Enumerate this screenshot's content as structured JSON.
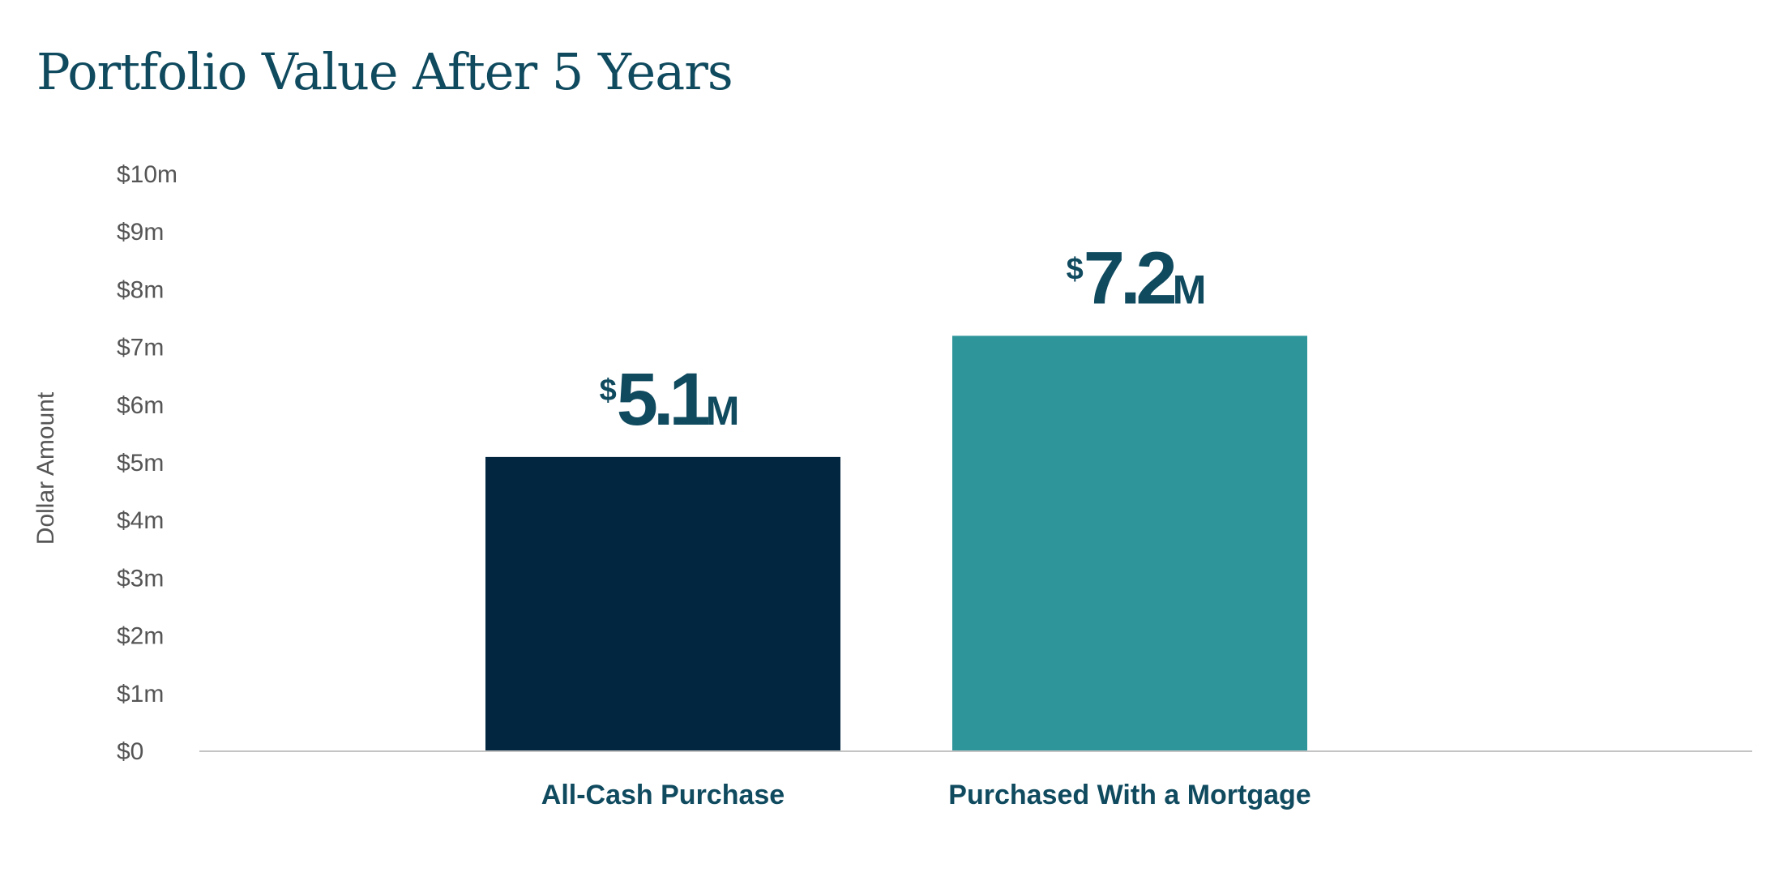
{
  "chart_data": {
    "type": "bar",
    "title": "Portfolio Value After 5 Years",
    "xlabel": "",
    "ylabel": "Dollar Amount",
    "ylim": [
      0,
      10
    ],
    "yticks": [
      "$0",
      "$1m",
      "$2m",
      "$3m",
      "$4m",
      "$5m",
      "$6m",
      "$7m",
      "$8m",
      "$9m",
      "$10m"
    ],
    "categories": [
      "All-Cash Purchase",
      "Purchased With a Mortgage"
    ],
    "values": [
      5.1,
      7.2
    ],
    "data_labels": [
      {
        "currency": "$",
        "number": "5.1",
        "unit": "M"
      },
      {
        "currency": "$",
        "number": "7.2",
        "unit": "M"
      }
    ],
    "colors": [
      "#022640",
      "#2e959b"
    ],
    "grid": false,
    "legend": "none"
  }
}
